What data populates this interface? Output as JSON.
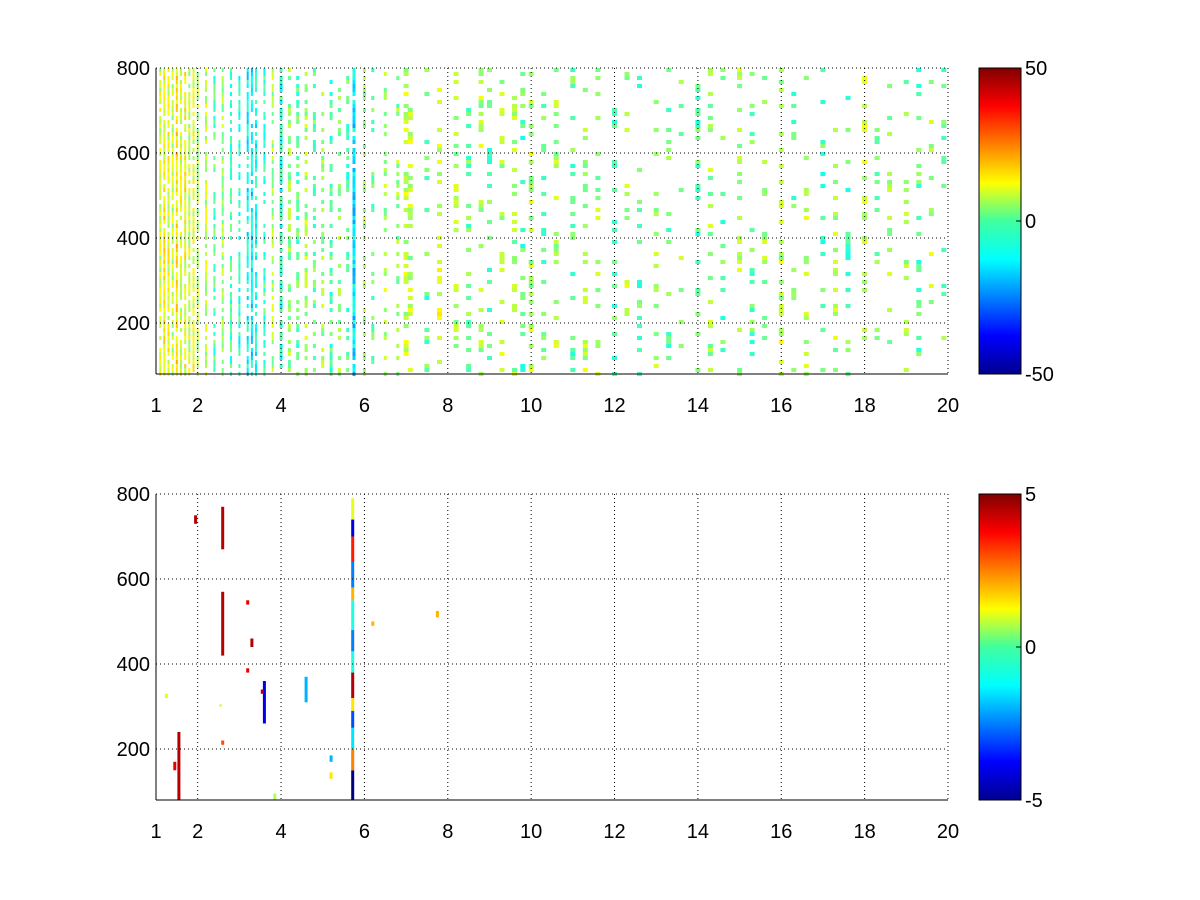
{
  "chart_data": [
    {
      "type": "heatmap",
      "x_tick_labels": [
        "1",
        "2",
        "4",
        "6",
        "8",
        "10",
        "12",
        "14",
        "16",
        "18",
        "20"
      ],
      "x_ticks": [
        1,
        2,
        4,
        6,
        8,
        10,
        12,
        14,
        16,
        18,
        20
      ],
      "y_tick_labels": [
        "200",
        "400",
        "600",
        "800"
      ],
      "y_ticks": [
        200,
        400,
        600,
        800
      ],
      "xlim": [
        1,
        20
      ],
      "ylim": [
        80,
        800
      ],
      "grid": true,
      "grid_style": "dotted",
      "colormap": "jet",
      "colorbar": {
        "position": "right",
        "range": [
          -50,
          50
        ],
        "tick_labels": [
          "50",
          "0",
          "-50"
        ],
        "ticks": [
          50,
          0,
          -50
        ]
      },
      "x_columns": [
        1.1,
        1.2,
        1.3,
        1.4,
        1.5,
        1.6,
        1.7,
        1.8,
        1.9,
        2.0,
        2.2,
        2.4,
        2.6,
        2.8,
        3.0,
        3.2,
        3.3,
        3.4,
        3.6,
        3.8,
        4.0,
        4.2,
        4.4,
        4.6,
        4.8,
        5.0,
        5.2,
        5.4,
        5.6,
        5.75,
        6.0,
        6.2,
        6.5,
        6.8,
        7.0,
        7.1,
        7.5,
        7.8,
        8.2,
        8.5,
        8.8,
        9.0,
        9.3,
        9.6,
        9.8,
        10.0,
        10.3,
        10.6,
        11.0,
        11.3,
        11.6,
        12.0,
        12.3,
        12.6,
        13.0,
        13.3,
        13.6,
        14.0,
        14.3,
        14.6,
        15.0,
        15.3,
        15.6,
        16.0,
        16.3,
        16.6,
        17.0,
        17.3,
        17.6,
        18.0,
        18.3,
        18.6,
        19.0,
        19.3,
        19.6,
        19.9
      ],
      "column_values": [
        8,
        12,
        10,
        6,
        14,
        9,
        11,
        7,
        10,
        5,
        6,
        -4,
        3,
        -6,
        -8,
        -12,
        -14,
        -10,
        -6,
        4,
        -8,
        2,
        -3,
        4,
        -2,
        3,
        -5,
        2,
        -4,
        -15,
        3,
        -2,
        4,
        2,
        6,
        5,
        -3,
        8,
        4,
        -2,
        5,
        -3,
        6,
        3,
        -4,
        5,
        -2,
        4,
        -3,
        5,
        3,
        -4,
        4,
        -3,
        5,
        -2,
        4,
        -4,
        3,
        -3,
        5,
        -2,
        4,
        6,
        -3,
        5,
        -4,
        4,
        -3,
        5,
        -2,
        4,
        3,
        -3,
        4,
        -2
      ],
      "column_density": [
        0.9,
        0.9,
        0.85,
        0.85,
        0.9,
        0.85,
        0.85,
        0.8,
        0.8,
        0.75,
        0.75,
        0.7,
        0.7,
        0.7,
        0.7,
        0.75,
        0.8,
        0.7,
        0.65,
        0.6,
        0.7,
        0.55,
        0.5,
        0.5,
        0.45,
        0.45,
        0.45,
        0.4,
        0.4,
        0.95,
        0.4,
        0.35,
        0.3,
        0.35,
        0.4,
        0.35,
        0.25,
        0.3,
        0.25,
        0.25,
        0.25,
        0.25,
        0.25,
        0.25,
        0.25,
        0.3,
        0.25,
        0.25,
        0.25,
        0.25,
        0.2,
        0.25,
        0.2,
        0.2,
        0.25,
        0.2,
        0.2,
        0.2,
        0.2,
        0.2,
        0.25,
        0.2,
        0.2,
        0.25,
        0.2,
        0.2,
        0.25,
        0.2,
        0.2,
        0.25,
        0.2,
        0.2,
        0.2,
        0.2,
        0.2,
        0.2
      ]
    },
    {
      "type": "heatmap",
      "x_tick_labels": [
        "1",
        "2",
        "4",
        "6",
        "8",
        "10",
        "12",
        "14",
        "16",
        "18",
        "20"
      ],
      "x_ticks": [
        1,
        2,
        4,
        6,
        8,
        10,
        12,
        14,
        16,
        18,
        20
      ],
      "y_tick_labels": [
        "200",
        "400",
        "600",
        "800"
      ],
      "y_ticks": [
        200,
        400,
        600,
        800
      ],
      "xlim": [
        1,
        20
      ],
      "ylim": [
        80,
        800
      ],
      "grid": true,
      "grid_style": "dotted",
      "colormap": "jet",
      "colorbar": {
        "position": "right",
        "range": [
          -5,
          5
        ],
        "tick_labels": [
          "5",
          "0",
          "-5"
        ],
        "ticks": [
          5,
          0,
          -5
        ]
      },
      "segments": [
        {
          "x": 1.55,
          "y0": 80,
          "y1": 240,
          "value": 4.5
        },
        {
          "x": 1.45,
          "y0": 150,
          "y1": 170,
          "value": 4.0
        },
        {
          "x": 1.25,
          "y0": 320,
          "y1": 330,
          "value": 1.0
        },
        {
          "x": 1.95,
          "y0": 730,
          "y1": 750,
          "value": 4.5
        },
        {
          "x": 2.6,
          "y0": 670,
          "y1": 770,
          "value": 4.5
        },
        {
          "x": 2.6,
          "y0": 420,
          "y1": 570,
          "value": 4.5
        },
        {
          "x": 2.6,
          "y0": 210,
          "y1": 220,
          "value": 3.0
        },
        {
          "x": 3.3,
          "y0": 440,
          "y1": 460,
          "value": 4.5
        },
        {
          "x": 3.2,
          "y0": 540,
          "y1": 550,
          "value": 4.0
        },
        {
          "x": 3.2,
          "y0": 380,
          "y1": 390,
          "value": 4.0
        },
        {
          "x": 3.6,
          "y0": 260,
          "y1": 360,
          "value": -4.0
        },
        {
          "x": 3.55,
          "y0": 330,
          "y1": 340,
          "value": 4.5
        },
        {
          "x": 2.55,
          "y0": 300,
          "y1": 305,
          "value": 1.0
        },
        {
          "x": 3.85,
          "y0": 80,
          "y1": 95,
          "value": 0.5
        },
        {
          "x": 4.6,
          "y0": 310,
          "y1": 370,
          "value": -2.0
        },
        {
          "x": 5.2,
          "y0": 170,
          "y1": 185,
          "value": -2.0
        },
        {
          "x": 5.2,
          "y0": 130,
          "y1": 145,
          "value": 1.5
        },
        {
          "x": 5.72,
          "y0": 80,
          "y1": 150,
          "value": -5.0
        },
        {
          "x": 5.72,
          "y0": 150,
          "y1": 200,
          "value": 2.5
        },
        {
          "x": 5.72,
          "y0": 200,
          "y1": 250,
          "value": -1.5
        },
        {
          "x": 5.72,
          "y0": 250,
          "y1": 290,
          "value": -3.0
        },
        {
          "x": 5.72,
          "y0": 290,
          "y1": 320,
          "value": 1.5
        },
        {
          "x": 5.72,
          "y0": 320,
          "y1": 380,
          "value": 4.5
        },
        {
          "x": 5.72,
          "y0": 380,
          "y1": 430,
          "value": -1.0
        },
        {
          "x": 5.72,
          "y0": 430,
          "y1": 480,
          "value": -2.5
        },
        {
          "x": 5.72,
          "y0": 480,
          "y1": 550,
          "value": -1.0
        },
        {
          "x": 5.72,
          "y0": 550,
          "y1": 580,
          "value": 2.0
        },
        {
          "x": 5.72,
          "y0": 580,
          "y1": 640,
          "value": -2.5
        },
        {
          "x": 5.72,
          "y0": 640,
          "y1": 700,
          "value": 3.5
        },
        {
          "x": 5.72,
          "y0": 700,
          "y1": 740,
          "value": -4.0
        },
        {
          "x": 5.72,
          "y0": 740,
          "y1": 790,
          "value": 1.0
        },
        {
          "x": 6.2,
          "y0": 490,
          "y1": 500,
          "value": 2.0
        },
        {
          "x": 7.75,
          "y0": 510,
          "y1": 525,
          "value": 2.0
        }
      ]
    }
  ]
}
